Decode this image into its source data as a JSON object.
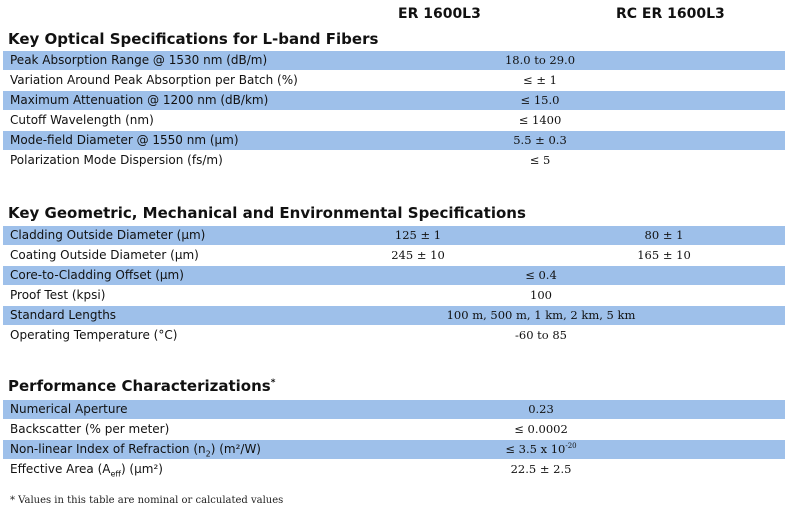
{
  "header": {
    "col1": "ER 1600L3",
    "col2": "RC ER 1600L3"
  },
  "optical": {
    "title": "Key Optical Specifications for L-band Fibers",
    "rows": [
      {
        "label": "Peak Absorption Range @ 1530 nm (dB/m)",
        "value": "18.0 to 29.0"
      },
      {
        "label": "Variation Around Peak Absorption per Batch (%)",
        "value": "≤ ± 1"
      },
      {
        "label": "Maximum Attenuation @ 1200 nm (dB/km)",
        "value": "≤ 15.0"
      },
      {
        "label": "Cutoff Wavelength (nm)",
        "value": "≤ 1400"
      },
      {
        "label": "Mode-field Diameter @ 1550 nm (μm)",
        "value": "5.5 ± 0.3"
      },
      {
        "label": "Polarization Mode Dispersion (fs/m)",
        "value": "≤ 5"
      }
    ]
  },
  "geometric": {
    "title": "Key Geometric, Mechanical and Environmental Specifications",
    "rows": [
      {
        "label": "Cladding Outside Diameter (μm)",
        "value1": "125 ± 1",
        "value2": "80 ± 1"
      },
      {
        "label": "Coating Outside Diameter (μm)",
        "value1": "245 ± 10",
        "value2": "165 ± 10"
      },
      {
        "label": "Core-to-Cladding Offset (μm)",
        "value": "≤ 0.4"
      },
      {
        "label": "Proof Test (kpsi)",
        "value": "100"
      },
      {
        "label": "Standard Lengths",
        "value": "100 m, 500 m, 1 km, 2 km, 5 km"
      },
      {
        "label": "Operating Temperature (°C)",
        "value": "-60 to 85"
      }
    ]
  },
  "performance": {
    "title": "Performance Characterizations",
    "title_mark": "*",
    "rows": [
      {
        "label": "Numerical Aperture",
        "value": "0.23"
      },
      {
        "label": "Backscatter (% per meter)",
        "value": "≤ 0.0002"
      },
      {
        "label_pre": "Non-linear Index of Refraction (n",
        "label_sub": "2",
        "label_post": ") (m²/W)",
        "value_pre": "≤ 3.5 x 10",
        "value_sup": "-20"
      },
      {
        "label_pre": "Effective Area (A",
        "label_sub": "eff",
        "label_post": ") (μm²)",
        "value": "22.5 ± 2.5"
      }
    ]
  },
  "footnote": "* Values in this table are nominal or calculated values"
}
